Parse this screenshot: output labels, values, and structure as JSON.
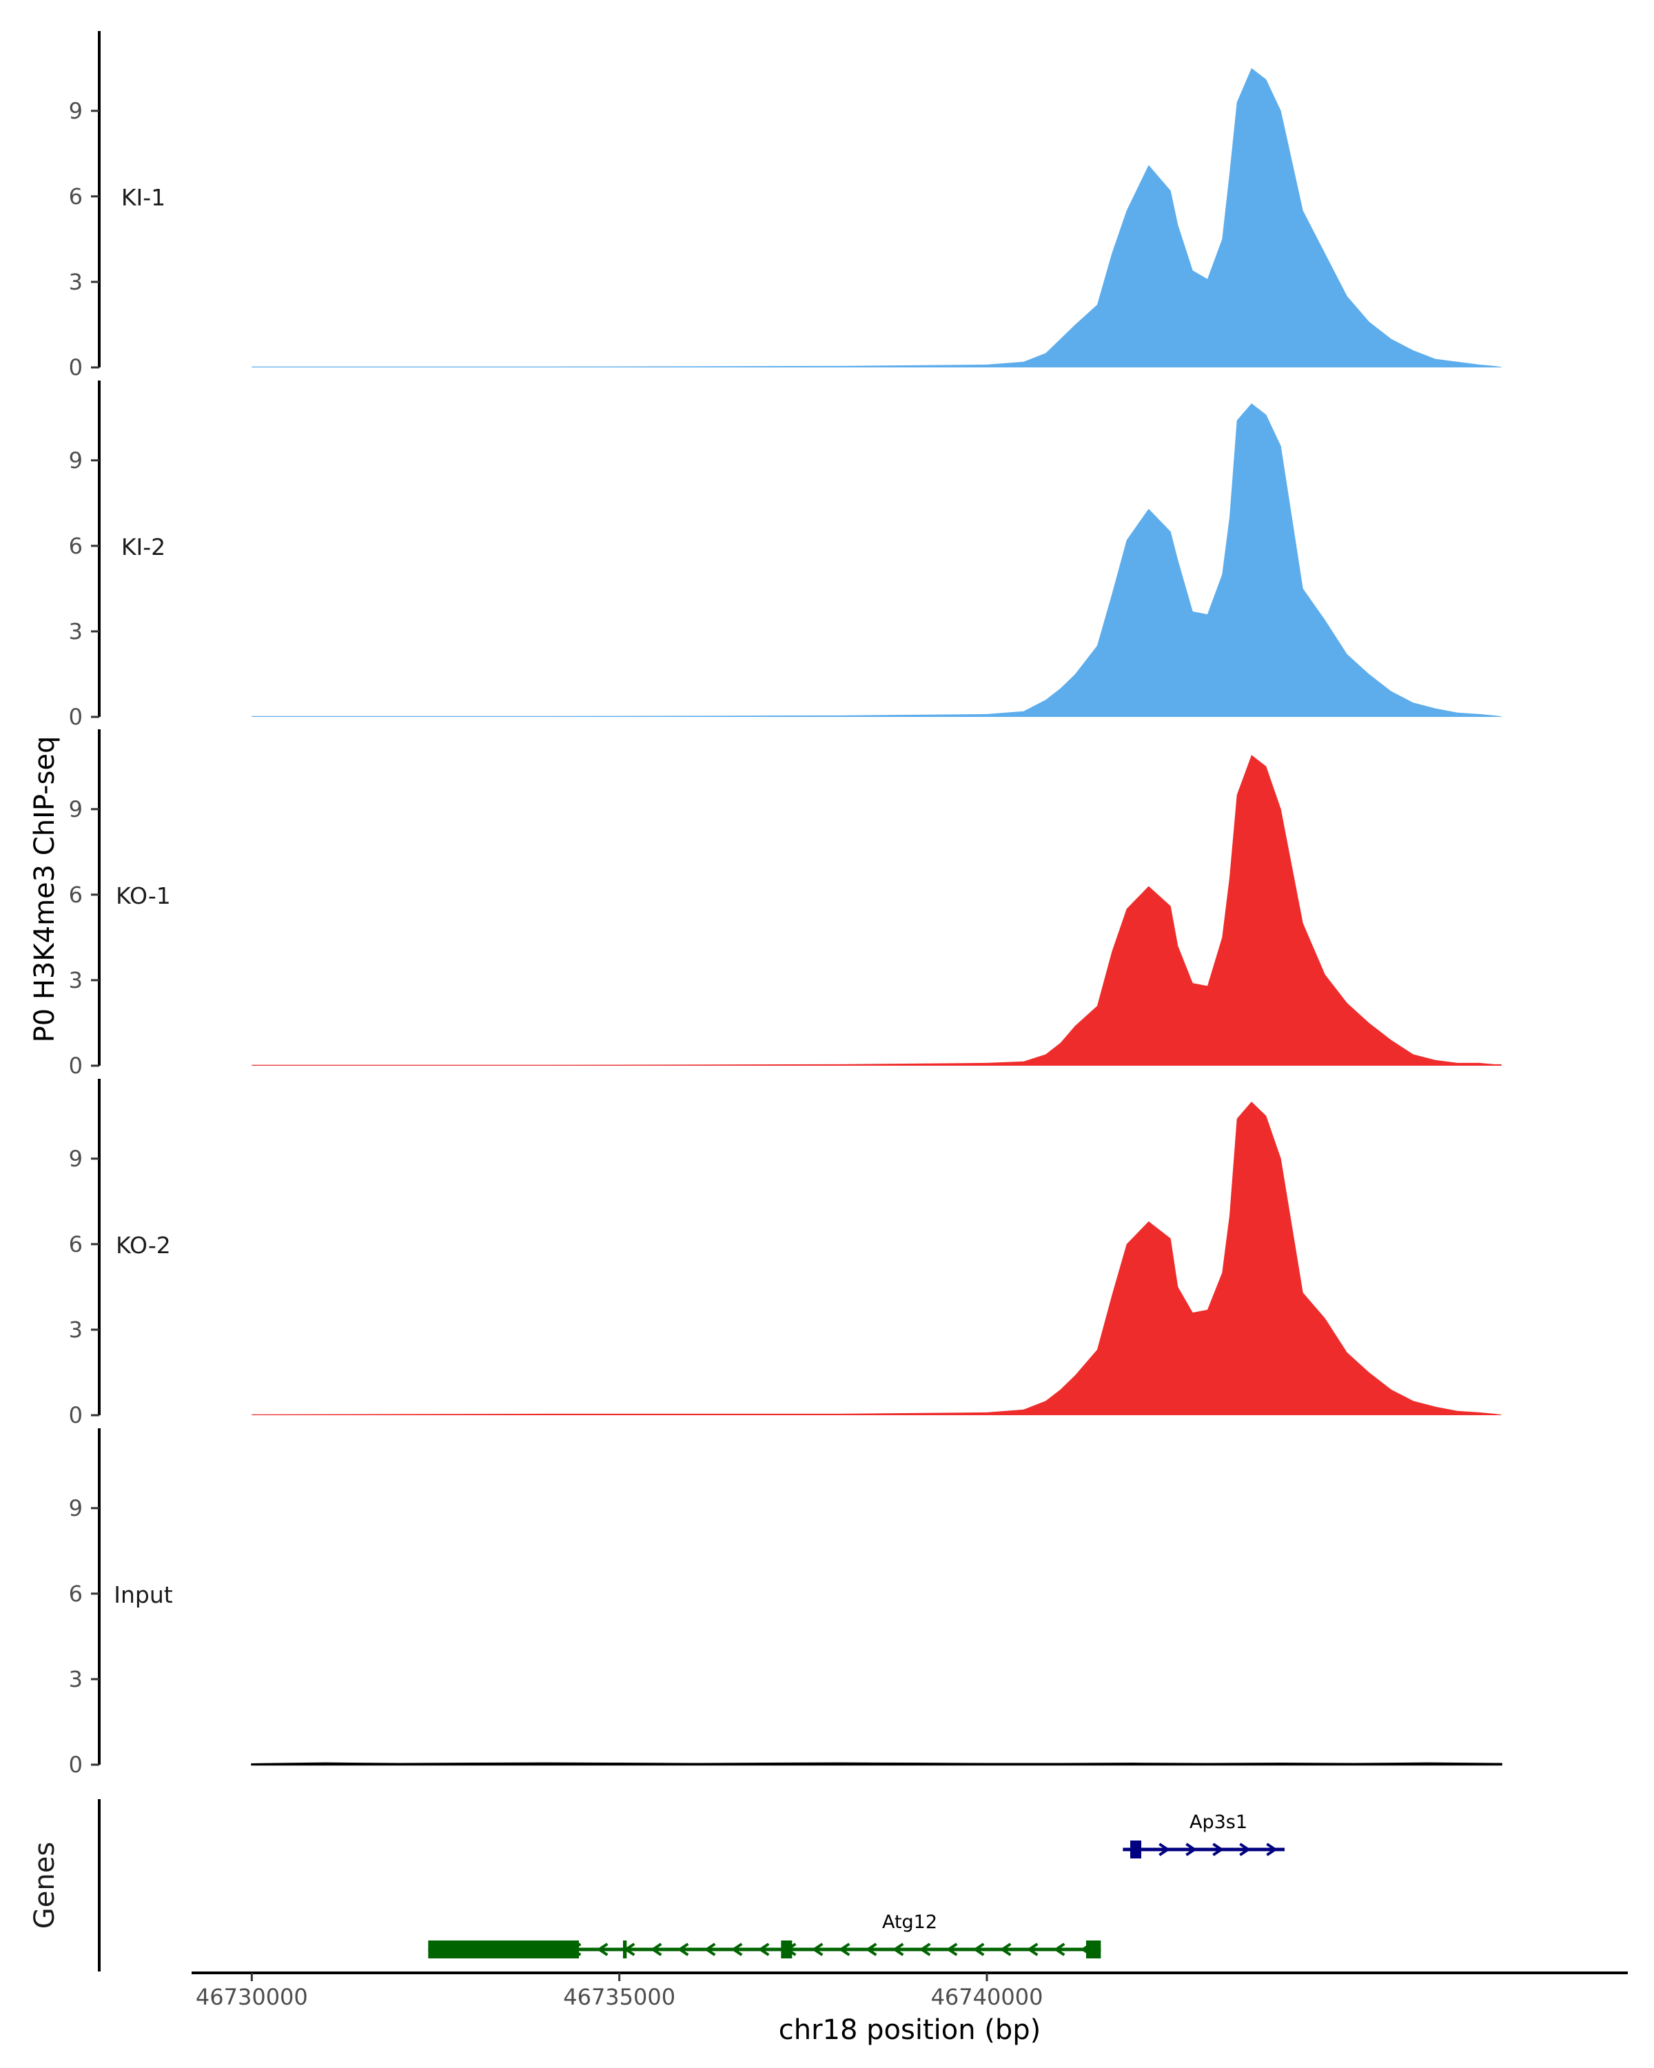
{
  "chart_data": {
    "type": "area",
    "ylabel": "P0 H3K4me3 ChIP-seq",
    "xlabel": "chr18 position (bp)",
    "x_range": [
      46729200,
      46748700
    ],
    "y_range": [
      0,
      11.8
    ],
    "y_ticks": [
      0,
      3,
      6,
      9
    ],
    "x_ticks": [
      {
        "value": 46730000,
        "label": "46730000"
      },
      {
        "value": 46735000,
        "label": "46735000"
      },
      {
        "value": 46740000,
        "label": "46740000"
      }
    ],
    "colors": {
      "KI": "#5DADEC",
      "KO": "#EE2C2C",
      "Input": "#000000",
      "Atg12": "#006400",
      "Ap3s1": "#000080"
    },
    "tracks": [
      {
        "name": "KI-1",
        "color": "#5DADEC",
        "x": [
          46730000,
          46734000,
          46738000,
          46740000,
          46740500,
          46740800,
          46741000,
          46741200,
          46741500,
          46741700,
          46741900,
          46742200,
          46742500,
          46742600,
          46742800,
          46743000,
          46743200,
          46743300,
          46743400,
          46743600,
          46743800,
          46744000,
          46744300,
          46744600,
          46744900,
          46745200,
          46745500,
          46745800,
          46746100,
          46746400,
          46746700,
          46746900,
          46747000
        ],
        "values": [
          0.03,
          0.03,
          0.05,
          0.1,
          0.2,
          0.5,
          1.0,
          1.5,
          2.2,
          4.0,
          5.5,
          7.1,
          6.2,
          5.0,
          3.4,
          3.1,
          4.5,
          6.8,
          9.3,
          10.5,
          10.1,
          9.0,
          5.5,
          4.0,
          2.5,
          1.6,
          1.0,
          0.6,
          0.3,
          0.2,
          0.1,
          0.05,
          0.02
        ]
      },
      {
        "name": "KI-2",
        "color": "#5DADEC",
        "x": [
          46730000,
          46734000,
          46738000,
          46740000,
          46740500,
          46740800,
          46741000,
          46741200,
          46741500,
          46741700,
          46741900,
          46742200,
          46742500,
          46742600,
          46742800,
          46743000,
          46743200,
          46743300,
          46743400,
          46743600,
          46743800,
          46744000,
          46744300,
          46744600,
          46744900,
          46745200,
          46745500,
          46745800,
          46746100,
          46746400,
          46746700,
          46746900,
          46747000
        ],
        "values": [
          0.03,
          0.03,
          0.05,
          0.1,
          0.2,
          0.6,
          1.0,
          1.5,
          2.5,
          4.3,
          6.2,
          7.3,
          6.5,
          5.5,
          3.7,
          3.6,
          5.0,
          7.0,
          10.4,
          11.0,
          10.6,
          9.5,
          4.5,
          3.4,
          2.2,
          1.5,
          0.9,
          0.5,
          0.3,
          0.15,
          0.1,
          0.05,
          0.02
        ]
      },
      {
        "name": "KO-1",
        "color": "#EE2C2C",
        "x": [
          46730000,
          46734000,
          46738000,
          46740000,
          46740500,
          46740800,
          46741000,
          46741200,
          46741500,
          46741700,
          46741900,
          46742200,
          46742500,
          46742600,
          46742800,
          46743000,
          46743200,
          46743300,
          46743400,
          46743600,
          46743800,
          46744000,
          46744300,
          46744600,
          46744900,
          46745200,
          46745500,
          46745800,
          46746100,
          46746400,
          46746700,
          46746900,
          46747000
        ],
        "values": [
          0.03,
          0.03,
          0.05,
          0.1,
          0.15,
          0.4,
          0.8,
          1.4,
          2.1,
          4.0,
          5.5,
          6.3,
          5.6,
          4.2,
          2.9,
          2.8,
          4.5,
          6.6,
          9.5,
          10.9,
          10.5,
          9.0,
          5.0,
          3.2,
          2.2,
          1.5,
          0.9,
          0.4,
          0.2,
          0.1,
          0.1,
          0.05,
          0.05
        ]
      },
      {
        "name": "KO-2",
        "color": "#EE2C2C",
        "x": [
          46730000,
          46734000,
          46738000,
          46740000,
          46740500,
          46740800,
          46741000,
          46741200,
          46741500,
          46741700,
          46741900,
          46742200,
          46742500,
          46742600,
          46742800,
          46743000,
          46743200,
          46743300,
          46743400,
          46743600,
          46743800,
          46744000,
          46744300,
          46744600,
          46744900,
          46745200,
          46745500,
          46745800,
          46746100,
          46746400,
          46746700,
          46746900,
          46747000
        ],
        "values": [
          0.03,
          0.05,
          0.05,
          0.1,
          0.2,
          0.5,
          0.9,
          1.4,
          2.3,
          4.2,
          6.0,
          6.8,
          6.2,
          4.5,
          3.6,
          3.7,
          5.0,
          7.0,
          10.4,
          11.0,
          10.5,
          9.0,
          4.3,
          3.4,
          2.2,
          1.5,
          0.9,
          0.5,
          0.3,
          0.15,
          0.1,
          0.05,
          0.02
        ]
      },
      {
        "name": "Input",
        "color": "#000000",
        "x": [
          46730000,
          46731000,
          46732000,
          46733000,
          46734000,
          46735000,
          46736000,
          46737000,
          46738000,
          46739000,
          46740000,
          46741000,
          46742000,
          46743000,
          46744000,
          46745000,
          46746000,
          46747000
        ],
        "values": [
          0.02,
          0.05,
          0.03,
          0.04,
          0.05,
          0.04,
          0.03,
          0.04,
          0.05,
          0.04,
          0.03,
          0.03,
          0.04,
          0.03,
          0.04,
          0.03,
          0.05,
          0.03
        ]
      }
    ],
    "genes_label": "Genes",
    "genes": [
      {
        "name": "Atg12",
        "strand": "-",
        "color": "#006400",
        "row": "lower",
        "start": 46732400,
        "end": 46741550,
        "exons": [
          [
            46732400,
            46734450
          ],
          [
            46735050,
            46735100
          ],
          [
            46737200,
            46737350
          ],
          [
            46741350,
            46741550
          ]
        ]
      },
      {
        "name": "Ap3s1",
        "strand": "+",
        "color": "#000080",
        "row": "upper",
        "start": 46741850,
        "end": 46744050,
        "exons": [
          [
            46741950,
            46742100
          ]
        ]
      }
    ]
  }
}
